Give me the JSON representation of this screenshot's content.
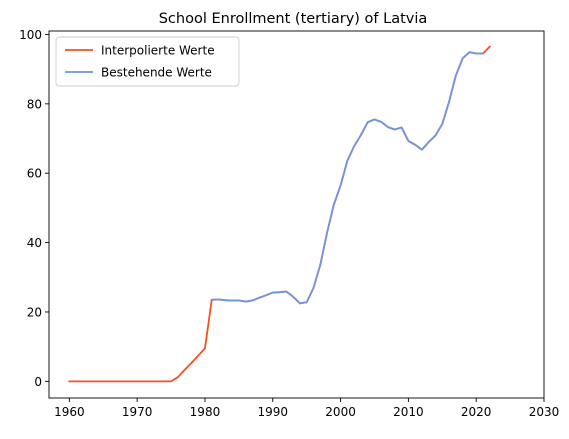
{
  "chart_data": {
    "type": "line",
    "title": "School Enrollment (tertiary) of Latvia",
    "xlabel": "",
    "ylabel": "",
    "xlim": [
      1957,
      2030
    ],
    "ylim": [
      -4.8,
      101
    ],
    "x_ticks": [
      1960,
      1970,
      1980,
      1990,
      2000,
      2010,
      2020,
      2030
    ],
    "y_ticks": [
      0,
      20,
      40,
      60,
      80,
      100
    ],
    "grid": false,
    "legend_position": "upper left",
    "series": [
      {
        "name": "Interpolierte Werte",
        "color": "#f4511e",
        "x": [
          1960,
          1961,
          1962,
          1963,
          1964,
          1965,
          1966,
          1967,
          1968,
          1969,
          1970,
          1971,
          1972,
          1973,
          1974,
          1975,
          1976,
          1977,
          1978,
          1979,
          1980,
          1981,
          1982,
          1983,
          1984,
          1985,
          1986,
          1987,
          1988,
          1989,
          1990,
          1991,
          1992,
          1993,
          1994,
          1995,
          1996,
          1997,
          1998,
          1999,
          2000,
          2001,
          2002,
          2003,
          2004,
          2005,
          2006,
          2007,
          2008,
          2009,
          2010,
          2011,
          2012,
          2013,
          2014,
          2015,
          2016,
          2017,
          2018,
          2019,
          2020,
          2021,
          2022
        ],
        "values": [
          0,
          0,
          0,
          0,
          0,
          0,
          0,
          0,
          0,
          0,
          0,
          0,
          0,
          0,
          0,
          0,
          1.2,
          3.3,
          5.3,
          7.4,
          9.5,
          23.5,
          23.6,
          23.4,
          23.3,
          23.3,
          23.0,
          23.3,
          24.1,
          24.8,
          25.6,
          25.7,
          25.9,
          24.4,
          22.5,
          22.8,
          26.9,
          33.5,
          42.8,
          50.9,
          56.5,
          63.6,
          67.8,
          71.0,
          74.7,
          75.5,
          74.8,
          73.3,
          72.6,
          73.2,
          69.3,
          68.2,
          66.8,
          69.0,
          70.9,
          74.2,
          80.6,
          88.2,
          93.1,
          94.9,
          94.5,
          94.5,
          96.5
        ]
      },
      {
        "name": "Bestehende Werte",
        "color": "#6f96e1",
        "x": [
          1981,
          1982,
          1983,
          1984,
          1985,
          1986,
          1987,
          1988,
          1989,
          1990,
          1991,
          1992,
          1993,
          1994,
          1995,
          1996,
          1997,
          1998,
          1999,
          2000,
          2001,
          2002,
          2003,
          2004,
          2005,
          2006,
          2007,
          2008,
          2009,
          2010,
          2011,
          2012,
          2013,
          2014,
          2015,
          2016,
          2017,
          2018,
          2019,
          2020,
          2021
        ],
        "values": [
          23.5,
          23.6,
          23.4,
          23.3,
          23.3,
          23.0,
          23.3,
          24.1,
          24.8,
          25.6,
          25.7,
          25.9,
          24.4,
          22.5,
          22.8,
          26.9,
          33.5,
          42.8,
          50.9,
          56.5,
          63.6,
          67.8,
          71.0,
          74.7,
          75.5,
          74.8,
          73.3,
          72.6,
          73.2,
          69.3,
          68.2,
          66.8,
          69.0,
          70.9,
          74.2,
          80.6,
          88.2,
          93.1,
          94.9,
          94.5,
          94.5
        ]
      }
    ]
  }
}
